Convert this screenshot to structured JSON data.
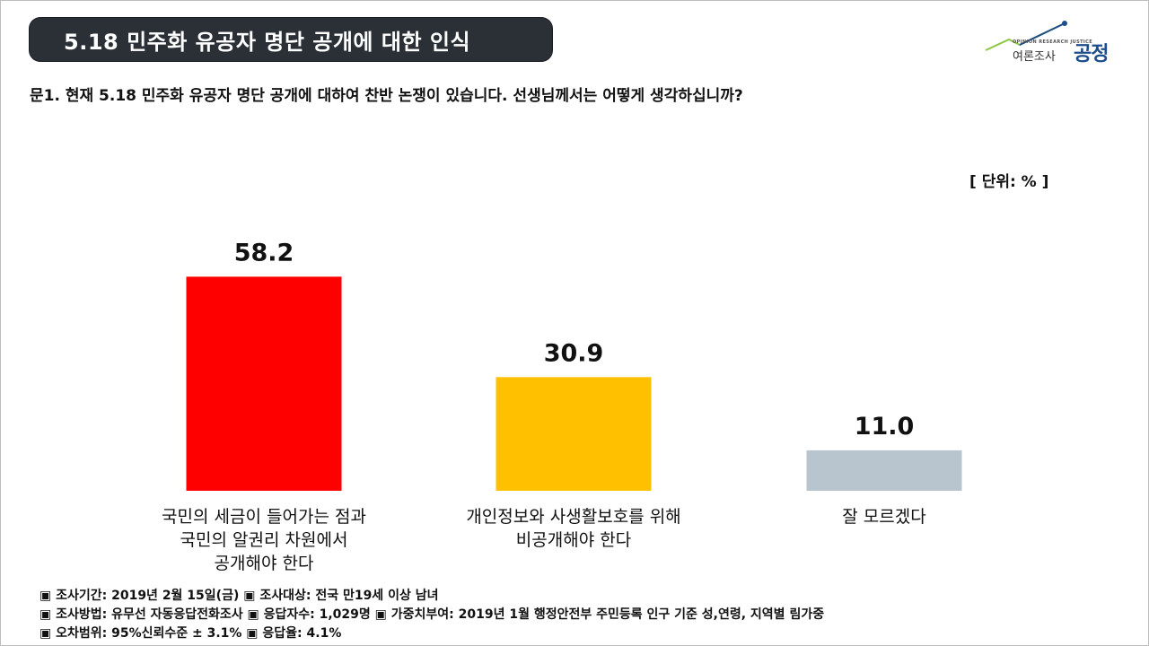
{
  "header": {
    "title": "5.18 민주화 유공자 명단 공개에 대한 인식"
  },
  "logo": {
    "subtitle": "OPINION RESEARCH JUSTICE",
    "small_text": "여론조사",
    "big_text": "공정",
    "accent_color": "#1e4d8c"
  },
  "question": "문1. 현재 5.18 민주화 유공자 명단 공개에 대하여 찬반 논쟁이 있습니다. 선생님께서는 어떻게 생각하십니까?",
  "unit": "[ 단위: % ]",
  "chart_data": {
    "type": "bar",
    "categories": [
      [
        "국민의 세금이 들어가는 점과",
        "국민의 알권리 차원에서",
        "공개해야 한다"
      ],
      [
        "개인정보와 사생활보호를 위해",
        "비공개해야 한다"
      ],
      [
        "잘 모르겠다"
      ]
    ],
    "values": [
      58.2,
      30.9,
      11.0
    ],
    "value_labels": [
      "58.2",
      "30.9",
      "11.0"
    ],
    "colors": [
      "#ff0000",
      "#ffc000",
      "#b8c4ce"
    ],
    "ylim": [
      0,
      100
    ]
  },
  "footer": {
    "lines": [
      "▣ 조사기간: 2019년 2월 15일(금) ▣ 조사대상: 전국 만19세 이상 남녀",
      "▣ 조사방법: 유무선 자동응답전화조사 ▣ 응답자수: 1,029명 ▣ 가중치부여: 2019년 1월 행정안전부 주민등록 인구 기준 성,연령, 지역별 림가중",
      "▣ 오차범위: 95%신뢰수준 ± 3.1% ▣ 응답율: 4.1%"
    ]
  }
}
